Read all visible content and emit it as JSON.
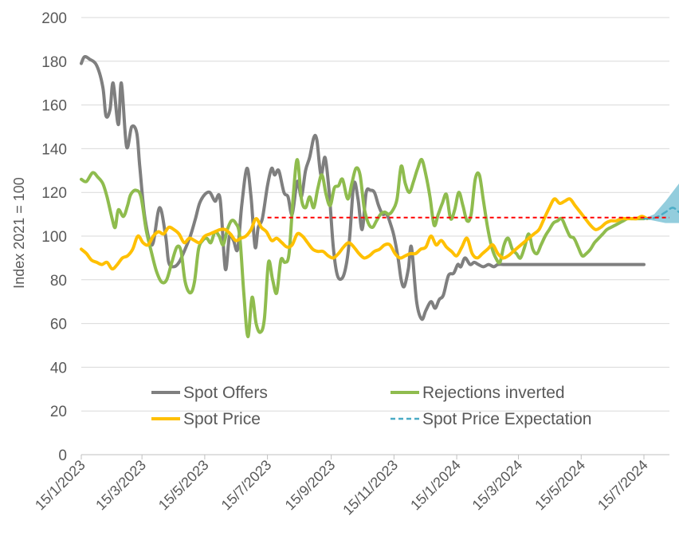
{
  "chart_data": {
    "type": "line",
    "title": "",
    "ylabel": "Index 2021 = 100",
    "xlabel": "",
    "ylim": [
      0,
      200
    ],
    "yticks": [
      0,
      20,
      40,
      60,
      80,
      100,
      120,
      140,
      160,
      180,
      200
    ],
    "xlim": [
      "2023-01-15",
      "2024-08-31"
    ],
    "xticks": [
      "2023-01-15",
      "2023-03-15",
      "2023-05-15",
      "2023-07-15",
      "2023-09-15",
      "2023-11-15",
      "2024-01-15",
      "2024-03-15",
      "2024-05-15",
      "2024-07-15"
    ],
    "xtick_labels": [
      "15/1/2023",
      "15/3/2023",
      "15/5/2023",
      "15/7/2023",
      "15/9/2023",
      "15/11/2023",
      "15/1/2024",
      "15/3/2024",
      "15/5/2024",
      "15/7/2024"
    ],
    "grid": "horizontal",
    "legend_position": "bottom-inside",
    "series": [
      {
        "name": "Spot Offers",
        "color": "#7f7f7f",
        "dash": "solid",
        "x": [
          "2023-01-15",
          "2023-01-18",
          "2023-01-23",
          "2023-01-30",
          "2023-02-05",
          "2023-02-08",
          "2023-02-12",
          "2023-02-15",
          "2023-02-20",
          "2023-02-23",
          "2023-02-28",
          "2023-03-05",
          "2023-03-10",
          "2023-03-13",
          "2023-03-18",
          "2023-03-25",
          "2023-04-01",
          "2023-04-07",
          "2023-04-10",
          "2023-04-15",
          "2023-04-20",
          "2023-04-25",
          "2023-05-01",
          "2023-05-06",
          "2023-05-10",
          "2023-05-15",
          "2023-05-20",
          "2023-05-25",
          "2023-05-30",
          "2023-06-04",
          "2023-06-08",
          "2023-06-12",
          "2023-06-16",
          "2023-06-20",
          "2023-06-25",
          "2023-06-29",
          "2023-07-03",
          "2023-07-06",
          "2023-07-10",
          "2023-07-15",
          "2023-07-19",
          "2023-07-22",
          "2023-07-26",
          "2023-07-31",
          "2023-08-04",
          "2023-08-08",
          "2023-08-13",
          "2023-08-17",
          "2023-08-21",
          "2023-08-25",
          "2023-08-29",
          "2023-09-01",
          "2023-09-05",
          "2023-09-09",
          "2023-09-13",
          "2023-09-17",
          "2023-09-21",
          "2023-09-26",
          "2023-09-30",
          "2023-10-03",
          "2023-10-07",
          "2023-10-11",
          "2023-10-15",
          "2023-10-19",
          "2023-10-23",
          "2023-10-27",
          "2023-10-31",
          "2023-11-04",
          "2023-11-08",
          "2023-11-12",
          "2023-11-15",
          "2023-11-19",
          "2023-11-22",
          "2023-11-25",
          "2023-11-29",
          "2023-12-02",
          "2023-12-07",
          "2023-12-12",
          "2023-12-16",
          "2023-12-21",
          "2023-12-25",
          "2023-12-29",
          "2024-01-02",
          "2024-01-07",
          "2024-01-12",
          "2024-01-16",
          "2024-01-19",
          "2024-01-23",
          "2024-01-28",
          "2024-02-01",
          "2024-02-05",
          "2024-02-10",
          "2024-02-15",
          "2024-02-20",
          "2024-02-24",
          "2024-03-01",
          "2024-03-06",
          "2024-03-12",
          "2024-03-18",
          "2024-03-23",
          "2024-03-28",
          "2024-04-01",
          "2024-04-06",
          "2024-04-11",
          "2024-04-16",
          "2024-04-21",
          "2024-04-26",
          "2024-05-01",
          "2024-05-05",
          "2024-05-10",
          "2024-05-15",
          "2024-05-19",
          "2024-05-23",
          "2024-05-28",
          "2024-06-01",
          "2024-06-05",
          "2024-06-09",
          "2024-06-13",
          "2024-06-17",
          "2024-06-21",
          "2024-06-25",
          "2024-06-30",
          "2024-07-04",
          "2024-07-08",
          "2024-07-12",
          "2024-07-15"
        ],
        "y": [
          179,
          182,
          181,
          178,
          168,
          155,
          158,
          170,
          151,
          170,
          141,
          150,
          147,
          131,
          108,
          96,
          113,
          100,
          88,
          86,
          88,
          93,
          100,
          108,
          115,
          119,
          120,
          116,
          117,
          85,
          100,
          98,
          94,
          114,
          131,
          118,
          95,
          104,
          108,
          123,
          131,
          128,
          130,
          120,
          118,
          110,
          125,
          118,
          130,
          136,
          145,
          144,
          128,
          136,
          120,
          95,
          82,
          81,
          88,
          100,
          124,
          117,
          103,
          120,
          121,
          120,
          114,
          110,
          110,
          105,
          100,
          90,
          80,
          77,
          85,
          95,
          70,
          62,
          66,
          70,
          67,
          71,
          73,
          82,
          83,
          87,
          86,
          90,
          87,
          88,
          87,
          86,
          87,
          86,
          87,
          87,
          87,
          87,
          87,
          87,
          87,
          87,
          87,
          87,
          87,
          87,
          87,
          87,
          87,
          87,
          87,
          87,
          87,
          87,
          87,
          87,
          87,
          87,
          87,
          87,
          87,
          87,
          87,
          87,
          87,
          87
        ]
      },
      {
        "name": "Rejections inverted",
        "color": "#8fbc4e",
        "dash": "solid",
        "x": [
          "2023-01-15",
          "2023-01-20",
          "2023-01-26",
          "2023-01-31",
          "2023-02-05",
          "2023-02-09",
          "2023-02-14",
          "2023-02-17",
          "2023-02-20",
          "2023-02-25",
          "2023-03-01",
          "2023-03-04",
          "2023-03-09",
          "2023-03-14",
          "2023-03-19",
          "2023-03-24",
          "2023-03-29",
          "2023-04-03",
          "2023-04-08",
          "2023-04-13",
          "2023-04-18",
          "2023-04-22",
          "2023-04-26",
          "2023-05-01",
          "2023-05-05",
          "2023-05-09",
          "2023-05-13",
          "2023-05-17",
          "2023-05-21",
          "2023-05-25",
          "2023-05-29",
          "2023-06-02",
          "2023-06-06",
          "2023-06-10",
          "2023-06-14",
          "2023-06-18",
          "2023-06-22",
          "2023-06-26",
          "2023-06-30",
          "2023-07-04",
          "2023-07-08",
          "2023-07-12",
          "2023-07-16",
          "2023-07-20",
          "2023-07-24",
          "2023-07-28",
          "2023-08-01",
          "2023-08-05",
          "2023-08-09",
          "2023-08-13",
          "2023-08-17",
          "2023-08-21",
          "2023-08-25",
          "2023-08-29",
          "2023-09-02",
          "2023-09-06",
          "2023-09-10",
          "2023-09-14",
          "2023-09-18",
          "2023-09-22",
          "2023-09-26",
          "2023-10-01",
          "2023-10-05",
          "2023-10-09",
          "2023-10-13",
          "2023-10-17",
          "2023-10-21",
          "2023-10-25",
          "2023-10-29",
          "2023-11-02",
          "2023-11-06",
          "2023-11-10",
          "2023-11-14",
          "2023-11-18",
          "2023-11-22",
          "2023-11-26",
          "2023-11-30",
          "2023-12-04",
          "2023-12-08",
          "2023-12-12",
          "2023-12-16",
          "2023-12-20",
          "2023-12-24",
          "2023-12-28",
          "2024-01-01",
          "2024-01-05",
          "2024-01-09",
          "2024-01-13",
          "2024-01-17",
          "2024-01-21",
          "2024-01-25",
          "2024-01-29",
          "2024-02-02",
          "2024-02-06",
          "2024-02-10",
          "2024-02-14",
          "2024-02-18",
          "2024-02-22",
          "2024-02-26",
          "2024-03-01",
          "2024-03-05",
          "2024-03-09",
          "2024-03-13",
          "2024-03-17",
          "2024-03-21",
          "2024-03-25",
          "2024-03-29",
          "2024-04-02",
          "2024-04-06",
          "2024-04-10",
          "2024-04-14",
          "2024-04-18",
          "2024-04-22",
          "2024-04-26",
          "2024-04-30",
          "2024-05-04",
          "2024-05-08",
          "2024-05-12",
          "2024-05-16",
          "2024-05-20",
          "2024-05-24",
          "2024-05-28",
          "2024-06-01",
          "2024-06-05",
          "2024-06-09",
          "2024-06-13",
          "2024-06-17",
          "2024-06-21",
          "2024-06-25",
          "2024-06-29",
          "2024-07-03",
          "2024-07-07",
          "2024-07-11",
          "2024-07-15"
        ],
        "y": [
          126,
          125,
          129,
          127,
          124,
          118,
          108,
          104,
          112,
          109,
          114,
          119,
          121,
          118,
          103,
          93,
          84,
          79,
          80,
          88,
          95,
          93,
          79,
          74,
          79,
          94,
          98,
          99,
          97,
          102,
          100,
          96,
          103,
          107,
          106,
          100,
          74,
          54,
          72,
          60,
          56,
          62,
          88,
          80,
          74,
          89,
          88,
          92,
          118,
          135,
          117,
          113,
          118,
          113,
          122,
          128,
          119,
          114,
          122,
          123,
          126,
          117,
          124,
          131,
          128,
          113,
          106,
          104,
          107,
          110,
          111,
          110,
          112,
          117,
          132,
          124,
          120,
          125,
          131,
          135,
          128,
          118,
          105,
          110,
          115,
          119,
          108,
          112,
          120,
          114,
          107,
          110,
          126,
          128,
          116,
          104,
          95,
          90,
          88,
          96,
          99,
          94,
          92,
          90,
          95,
          101,
          94,
          92,
          96,
          100,
          103,
          106,
          107,
          108,
          104,
          100,
          99,
          95,
          91,
          92,
          94,
          97,
          99,
          101,
          103,
          104,
          105,
          106,
          107,
          108,
          108,
          108,
          108,
          108
        ]
      },
      {
        "name": "Spot Price",
        "color": "#ffc000",
        "dash": "solid",
        "x": [
          "2023-01-15",
          "2023-01-20",
          "2023-01-25",
          "2023-01-30",
          "2023-02-04",
          "2023-02-09",
          "2023-02-14",
          "2023-02-19",
          "2023-02-24",
          "2023-03-01",
          "2023-03-06",
          "2023-03-11",
          "2023-03-16",
          "2023-03-21",
          "2023-03-26",
          "2023-03-31",
          "2023-04-05",
          "2023-04-10",
          "2023-04-15",
          "2023-04-20",
          "2023-04-25",
          "2023-04-30",
          "2023-05-05",
          "2023-05-10",
          "2023-05-15",
          "2023-05-20",
          "2023-05-25",
          "2023-05-30",
          "2023-06-04",
          "2023-06-09",
          "2023-06-14",
          "2023-06-19",
          "2023-06-24",
          "2023-06-29",
          "2023-07-04",
          "2023-07-09",
          "2023-07-14",
          "2023-07-19",
          "2023-07-24",
          "2023-07-29",
          "2023-08-03",
          "2023-08-08",
          "2023-08-13",
          "2023-08-18",
          "2023-08-23",
          "2023-08-28",
          "2023-09-02",
          "2023-09-07",
          "2023-09-12",
          "2023-09-17",
          "2023-09-22",
          "2023-09-27",
          "2023-10-02",
          "2023-10-07",
          "2023-10-12",
          "2023-10-17",
          "2023-10-22",
          "2023-10-27",
          "2023-11-01",
          "2023-11-06",
          "2023-11-11",
          "2023-11-16",
          "2023-11-21",
          "2023-11-26",
          "2023-12-01",
          "2023-12-06",
          "2023-12-11",
          "2023-12-16",
          "2023-12-21",
          "2023-12-26",
          "2023-12-31",
          "2024-01-05",
          "2024-01-10",
          "2024-01-15",
          "2024-01-20",
          "2024-01-25",
          "2024-01-30",
          "2024-02-04",
          "2024-02-09",
          "2024-02-14",
          "2024-02-19",
          "2024-02-24",
          "2024-02-29",
          "2024-03-05",
          "2024-03-10",
          "2024-03-15",
          "2024-03-20",
          "2024-03-25",
          "2024-03-30",
          "2024-04-04",
          "2024-04-09",
          "2024-04-14",
          "2024-04-19",
          "2024-04-24",
          "2024-04-29",
          "2024-05-04",
          "2024-05-09",
          "2024-05-14",
          "2024-05-19",
          "2024-05-24",
          "2024-05-29",
          "2024-06-03",
          "2024-06-08",
          "2024-06-13",
          "2024-06-18",
          "2024-06-23",
          "2024-06-28",
          "2024-07-03",
          "2024-07-08",
          "2024-07-13",
          "2024-07-18"
        ],
        "y": [
          94,
          92,
          89,
          88,
          87,
          88,
          85,
          87,
          90,
          91,
          94,
          100,
          97,
          96,
          100,
          102,
          101,
          104,
          103,
          101,
          97,
          99,
          98,
          97,
          100,
          101,
          102,
          103,
          103,
          101,
          98,
          99,
          100,
          103,
          108,
          104,
          102,
          98,
          99,
          97,
          95,
          96,
          101,
          100,
          97,
          94,
          93,
          93,
          91,
          90,
          92,
          95,
          97,
          95,
          92,
          90,
          91,
          93,
          94,
          96,
          96,
          92,
          90,
          91,
          92,
          92,
          94,
          95,
          100,
          96,
          98,
          95,
          93,
          91,
          95,
          99,
          92,
          90,
          92,
          94,
          96,
          92,
          90,
          91,
          93,
          95,
          97,
          99,
          101,
          103,
          108,
          113,
          117,
          115,
          116,
          117,
          114,
          111,
          108,
          105,
          103,
          104,
          106,
          107,
          107,
          108,
          108,
          108,
          108,
          109,
          108
        ]
      },
      {
        "name": "Spot Price Expectation",
        "color": "#4bacc6",
        "dash": "dashed",
        "x": [
          "2024-07-15",
          "2024-07-22",
          "2024-07-29",
          "2024-08-05",
          "2024-08-12",
          "2024-08-18"
        ],
        "y": [
          108,
          108,
          109,
          111,
          113,
          111
        ]
      }
    ],
    "reference_line": {
      "y": 108.5,
      "color": "#ff0000",
      "dash": "dashed",
      "x": [
        "2023-07-15",
        "2024-08-31"
      ]
    },
    "expectation_band": {
      "color": "#4bacc6",
      "x": [
        "2024-07-15",
        "2024-07-25",
        "2024-08-05",
        "2024-08-18",
        "2024-08-22"
      ],
      "upper": [
        108,
        110,
        116,
        124,
        129
      ],
      "lower": [
        108,
        107,
        106,
        106,
        107
      ]
    }
  }
}
